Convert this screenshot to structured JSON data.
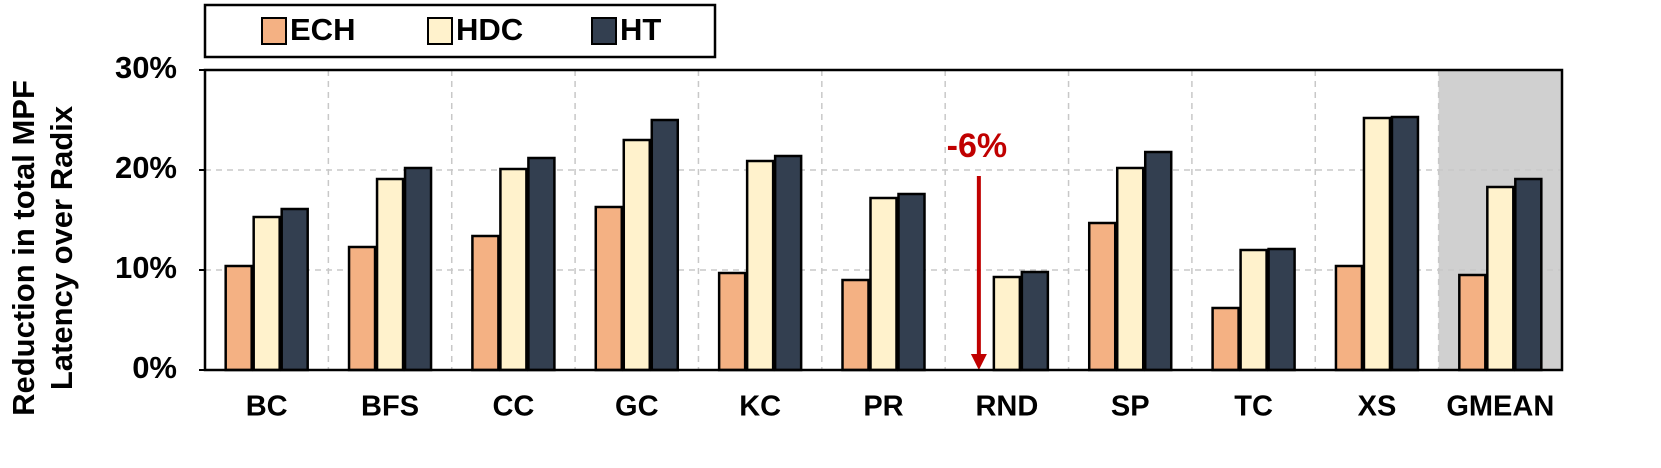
{
  "chart_data": {
    "type": "bar",
    "ylabel": [
      "Reduction in total MPF",
      "Latency over Radix"
    ],
    "categories": [
      "BC",
      "BFS",
      "CC",
      "GC",
      "KC",
      "PR",
      "RND",
      "SP",
      "TC",
      "XS",
      "GMEAN"
    ],
    "series": [
      {
        "name": "ECH",
        "color": "#f4b183",
        "values": [
          10.4,
          12.3,
          13.4,
          16.3,
          9.7,
          9.0,
          -6,
          14.7,
          6.2,
          10.4,
          9.5
        ],
        "value_labels": [
          null,
          null,
          null,
          null,
          null,
          null,
          "-6%",
          null,
          null,
          null,
          null
        ]
      },
      {
        "name": "HDC",
        "color": "#fff2cc",
        "values": [
          15.3,
          19.1,
          20.1,
          23.0,
          20.9,
          17.2,
          9.3,
          20.2,
          12.0,
          25.2,
          18.3
        ]
      },
      {
        "name": "HT",
        "color": "#333f50",
        "values": [
          16.1,
          20.2,
          21.2,
          25.0,
          21.4,
          17.6,
          9.8,
          21.8,
          12.1,
          25.3,
          19.1
        ]
      }
    ],
    "ylim": [
      0,
      30
    ],
    "yticks": [
      {
        "value": 0,
        "label": "0%"
      },
      {
        "value": 10,
        "label": "10%"
      },
      {
        "value": 20,
        "label": "20%"
      },
      {
        "value": 30,
        "label": "30%"
      }
    ],
    "grid": true,
    "legend": "top",
    "highlight_category": "GMEAN"
  }
}
